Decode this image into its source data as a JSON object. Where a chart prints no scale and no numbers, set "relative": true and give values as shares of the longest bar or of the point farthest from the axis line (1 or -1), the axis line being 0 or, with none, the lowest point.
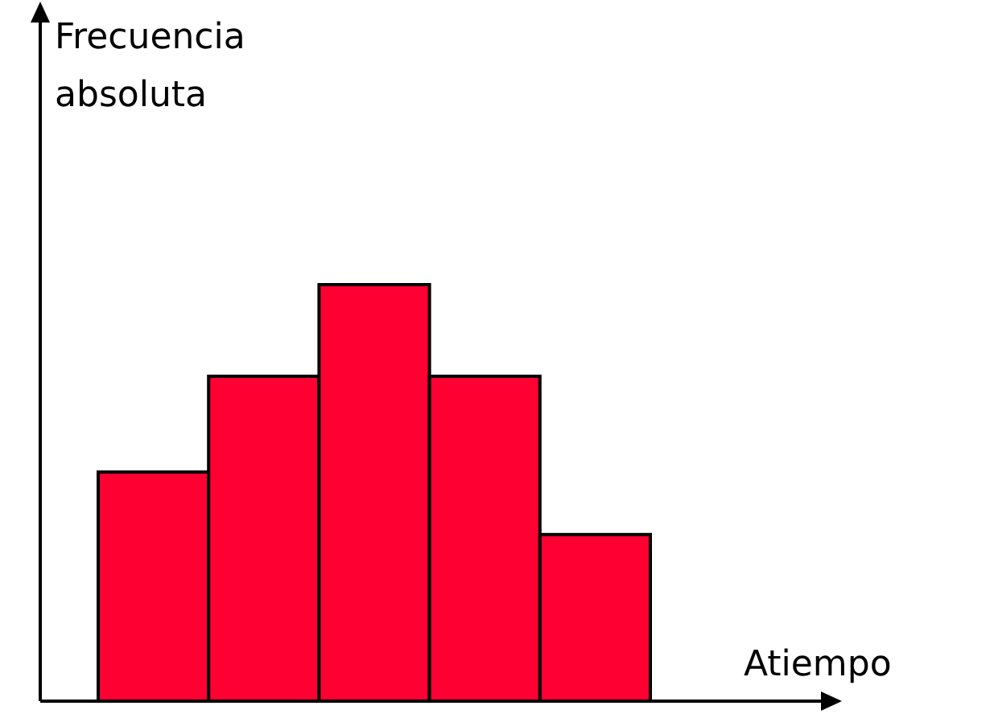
{
  "chart_data": {
    "type": "bar",
    "relative": true,
    "categories": [
      null,
      null,
      null,
      null,
      null
    ],
    "values": [
      0.55,
      0.78,
      1,
      0.78,
      0.4
    ],
    "color": "#ff0033",
    "xlabel": "Atiempo",
    "ylabel": "Frecuencia absoluta"
  }
}
